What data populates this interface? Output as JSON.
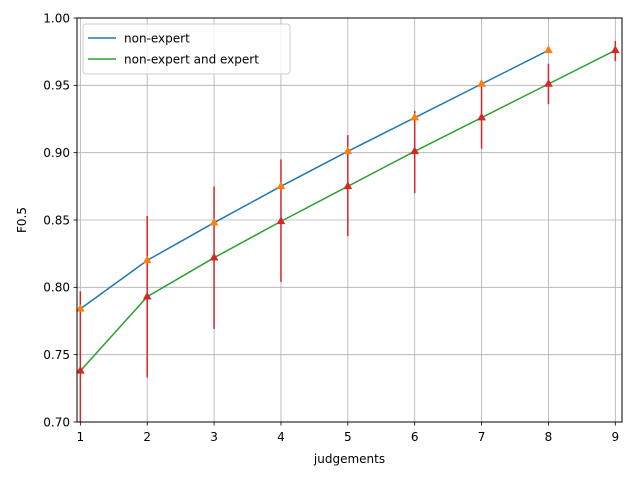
{
  "chart_data": {
    "type": "line",
    "xlabel": "judgements",
    "ylabel": "F0.5",
    "xlim": [
      0.95,
      9.1
    ],
    "ylim": [
      0.7,
      1.0
    ],
    "x_ticks": [
      1,
      2,
      3,
      4,
      5,
      6,
      7,
      8,
      9
    ],
    "x_tick_labels": [
      "1",
      "2",
      "3",
      "4",
      "5",
      "6",
      "7",
      "8",
      "9"
    ],
    "y_ticks": [
      0.7,
      0.75,
      0.8,
      0.85,
      0.9,
      0.95,
      1.0
    ],
    "y_tick_labels": [
      "0.70",
      "0.75",
      "0.80",
      "0.85",
      "0.90",
      "0.95",
      "1.00"
    ],
    "grid": true,
    "legend_position": "top-left",
    "series": [
      {
        "name": "non-expert",
        "color": "#1f77b4",
        "marker_color": "#ff7f0e",
        "x": [
          1,
          2,
          3,
          4,
          5,
          6,
          7,
          8
        ],
        "values": [
          0.784,
          0.82,
          0.848,
          0.875,
          0.901,
          0.926,
          0.951,
          0.976
        ]
      },
      {
        "name": "non-expert and expert",
        "color": "#2ca02c",
        "marker_color": "#d62728",
        "x": [
          1,
          2,
          3,
          4,
          5,
          6,
          7,
          8,
          9
        ],
        "values": [
          0.738,
          0.793,
          0.822,
          0.849,
          0.875,
          0.901,
          0.926,
          0.951,
          0.976
        ],
        "error_low": [
          0.68,
          0.733,
          0.769,
          0.804,
          0.838,
          0.87,
          0.903,
          0.936,
          0.968
        ],
        "error_high": [
          0.797,
          0.853,
          0.875,
          0.895,
          0.913,
          0.931,
          0.95,
          0.966,
          0.983
        ]
      }
    ]
  }
}
